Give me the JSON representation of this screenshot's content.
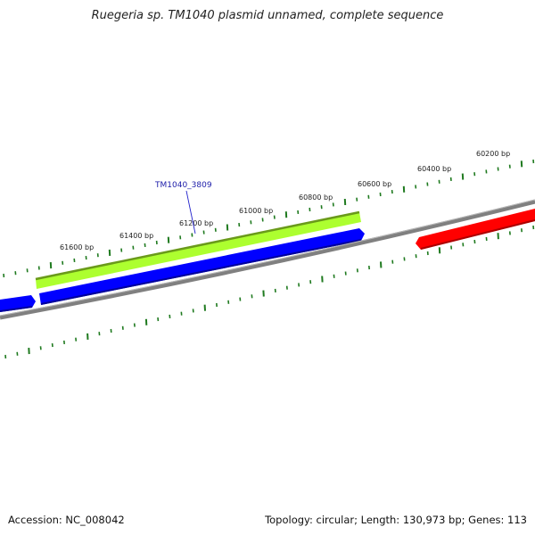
{
  "title": "Ruegeria sp. TM1040 plasmid unnamed, complete sequence",
  "footer": {
    "accession": "Accession: NC_008042",
    "summary": "Topology: circular; Length: 130,973 bp; Genes: 113"
  },
  "ruler": {
    "labels": [
      "61600 bp",
      "61400 bp",
      "61200 bp",
      "61000 bp",
      "60800 bp",
      "60600 bp",
      "60400 bp",
      "60200 bp"
    ]
  },
  "features": [
    {
      "name": "gene-arrow-green",
      "color": "#adff2f",
      "edge": "#6a9a1a"
    },
    {
      "name": "cds-arrow-blue-long",
      "color": "#0000ff",
      "edge": "#00009a"
    },
    {
      "name": "cds-arrow-blue-left",
      "color": "#0000ff",
      "edge": "#00009a"
    },
    {
      "name": "cds-arrow-red",
      "color": "#ff0000",
      "edge": "#aa0000"
    }
  ],
  "gene_callout": {
    "label": "TM1040_3809"
  },
  "colors": {
    "backbone": "#808080",
    "tick": "#1f7a1f"
  }
}
